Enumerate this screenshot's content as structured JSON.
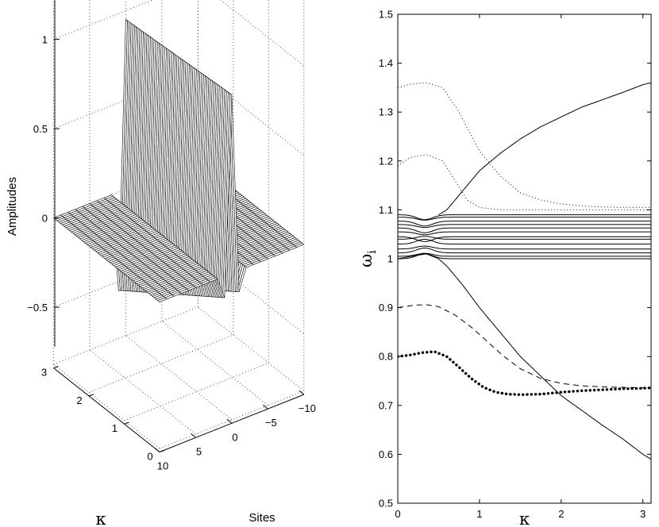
{
  "chart_data": [
    {
      "type": "surface",
      "panel": "left",
      "xlabel": "Sites",
      "ylabel": "κ",
      "zlabel": "Amplitudes",
      "x_range": [
        -10,
        10
      ],
      "y_range": [
        0,
        3
      ],
      "z_range": [
        -0.7,
        1.4
      ],
      "x_ticks": [
        "10",
        "5",
        "0",
        "−5",
        "−10"
      ],
      "y_ticks": [
        "0",
        "1",
        "2",
        "3"
      ],
      "z_ticks": [
        "−0.5",
        "0",
        "0.5",
        "1"
      ],
      "grid": true,
      "surface": {
        "site_at_peak": 0,
        "peak_amplitude_at_kappa0": 1.0,
        "peak_amplitude_at_kappa3": 0.95,
        "neighbor_sites": [
          -1,
          1
        ],
        "neighbor_amplitude_at_kappa0": -0.12,
        "neighbor_amplitude_at_kappa3": -0.55
      }
    },
    {
      "type": "line",
      "panel": "right",
      "xlabel": "κ",
      "ylabel": "ω_i",
      "xlim": [
        0,
        3.1
      ],
      "ylim": [
        0.5,
        1.5
      ],
      "x_ticks": [
        "0",
        "1",
        "2",
        "3"
      ],
      "y_ticks": [
        "0.5",
        "0.6",
        "0.7",
        "0.8",
        "0.9",
        "1",
        "1.1",
        "1.2",
        "1.3",
        "1.4",
        "1.5"
      ],
      "grid": false,
      "series": [
        {
          "style": "dotted",
          "x": [
            0,
            0.15,
            0.35,
            0.55,
            0.75,
            1.0,
            1.25,
            1.5,
            1.75,
            2.0,
            2.25,
            2.5,
            2.75,
            3.0,
            3.1
          ],
          "y": [
            1.35,
            1.357,
            1.36,
            1.35,
            1.3,
            1.22,
            1.17,
            1.135,
            1.12,
            1.112,
            1.108,
            1.106,
            1.105,
            1.105,
            1.105
          ]
        },
        {
          "style": "dotted",
          "x": [
            0,
            0.15,
            0.35,
            0.55,
            0.7,
            0.85,
            1.0,
            1.25,
            1.5,
            1.75,
            2.0,
            2.5,
            3.1
          ],
          "y": [
            1.19,
            1.207,
            1.213,
            1.2,
            1.16,
            1.12,
            1.105,
            1.1,
            1.1,
            1.1,
            1.1,
            1.1,
            1.1
          ]
        },
        {
          "style": "solid",
          "x": [
            0.5,
            0.6,
            0.8,
            1.0,
            1.25,
            1.5,
            1.75,
            2.0,
            2.25,
            2.5,
            2.75,
            3.0,
            3.1
          ],
          "y": [
            1.09,
            1.1,
            1.14,
            1.18,
            1.215,
            1.245,
            1.27,
            1.29,
            1.31,
            1.325,
            1.34,
            1.356,
            1.36
          ]
        },
        {
          "style": "solid",
          "x": [
            0,
            0.2,
            0.35,
            0.5,
            0.6,
            0.8,
            1.0,
            1.25,
            1.5,
            1.75,
            2.0,
            2.25,
            2.5,
            2.75,
            3.0,
            3.1
          ],
          "y": [
            1.0,
            1.006,
            1.01,
            1.0,
            0.985,
            0.945,
            0.9,
            0.85,
            0.8,
            0.76,
            0.72,
            0.69,
            0.66,
            0.632,
            0.6,
            0.59
          ]
        },
        {
          "style": "dashed",
          "x": [
            0,
            0.2,
            0.35,
            0.5,
            0.7,
            0.9,
            1.1,
            1.3,
            1.5,
            1.75,
            2.0,
            2.25,
            2.5,
            2.75,
            3.0,
            3.1
          ],
          "y": [
            0.9,
            0.905,
            0.906,
            0.902,
            0.885,
            0.86,
            0.83,
            0.8,
            0.775,
            0.755,
            0.745,
            0.74,
            0.738,
            0.737,
            0.736,
            0.736
          ]
        },
        {
          "style": "bold-dotted",
          "x": [
            0,
            0.15,
            0.3,
            0.45,
            0.6,
            0.75,
            0.9,
            1.05,
            1.2,
            1.35,
            1.5,
            1.75,
            2.0,
            2.25,
            2.5,
            2.75,
            3.0,
            3.1
          ],
          "y": [
            0.8,
            0.803,
            0.808,
            0.81,
            0.8,
            0.778,
            0.755,
            0.737,
            0.727,
            0.723,
            0.722,
            0.723,
            0.727,
            0.73,
            0.732,
            0.734,
            0.735,
            0.736
          ]
        },
        {
          "style": "solid-band",
          "levels": [
            1.0,
            1.005,
            1.012,
            1.02,
            1.03,
            1.04,
            1.045,
            1.055,
            1.063,
            1.07,
            1.077,
            1.085,
            1.09
          ],
          "bump_center": 0.33,
          "bump_height": 0.01
        }
      ]
    }
  ]
}
